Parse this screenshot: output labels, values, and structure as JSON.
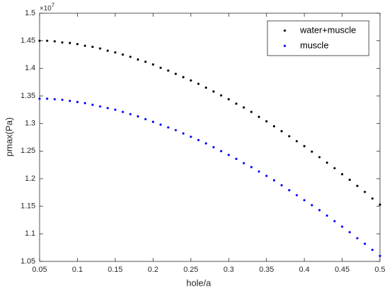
{
  "chart_data": {
    "type": "scatter",
    "xlabel": "hole/a",
    "ylabel": "pmax(Pa)",
    "y_exponent_base": "×10",
    "y_exponent_power": "7",
    "x": [
      0.05,
      0.06,
      0.07,
      0.08,
      0.09,
      0.1,
      0.11,
      0.12,
      0.13,
      0.14,
      0.15,
      0.16,
      0.17,
      0.18,
      0.19,
      0.2,
      0.21,
      0.22,
      0.23,
      0.24,
      0.25,
      0.26,
      0.27,
      0.28,
      0.29,
      0.3,
      0.31,
      0.32,
      0.33,
      0.34,
      0.35,
      0.36,
      0.37,
      0.38,
      0.39,
      0.4,
      0.41,
      0.42,
      0.43,
      0.44,
      0.45,
      0.46,
      0.47,
      0.48,
      0.49,
      0.5
    ],
    "series": [
      {
        "name": "water+muscle",
        "color": "#000000",
        "values": [
          1.45,
          1.45,
          1.449,
          1.447,
          1.446,
          1.444,
          1.441,
          1.439,
          1.436,
          1.432,
          1.429,
          1.425,
          1.421,
          1.416,
          1.412,
          1.407,
          1.401,
          1.396,
          1.39,
          1.384,
          1.378,
          1.372,
          1.365,
          1.358,
          1.351,
          1.344,
          1.336,
          1.329,
          1.321,
          1.312,
          1.304,
          1.295,
          1.286,
          1.277,
          1.268,
          1.259,
          1.249,
          1.239,
          1.229,
          1.219,
          1.208,
          1.198,
          1.187,
          1.176,
          1.164,
          1.153
        ]
      },
      {
        "name": "muscle",
        "color": "#0000ff",
        "values": [
          1.345,
          1.345,
          1.344,
          1.343,
          1.341,
          1.339,
          1.337,
          1.334,
          1.331,
          1.328,
          1.325,
          1.321,
          1.317,
          1.313,
          1.308,
          1.303,
          1.298,
          1.293,
          1.288,
          1.282,
          1.276,
          1.27,
          1.264,
          1.257,
          1.25,
          1.243,
          1.236,
          1.228,
          1.221,
          1.213,
          1.205,
          1.197,
          1.188,
          1.179,
          1.17,
          1.161,
          1.152,
          1.143,
          1.133,
          1.123,
          1.113,
          1.103,
          1.092,
          1.082,
          1.071,
          1.06
        ]
      }
    ],
    "xlim": [
      0.05,
      0.5
    ],
    "xticks": [
      0.05,
      0.1,
      0.15,
      0.2,
      0.25,
      0.3,
      0.35,
      0.4,
      0.45,
      0.5
    ],
    "ylim": [
      1.05,
      1.5
    ],
    "yticks": [
      1.05,
      1.1,
      1.15,
      1.2,
      1.25,
      1.3,
      1.35,
      1.4,
      1.45,
      1.5
    ],
    "grid": false,
    "legend": "northeast"
  }
}
